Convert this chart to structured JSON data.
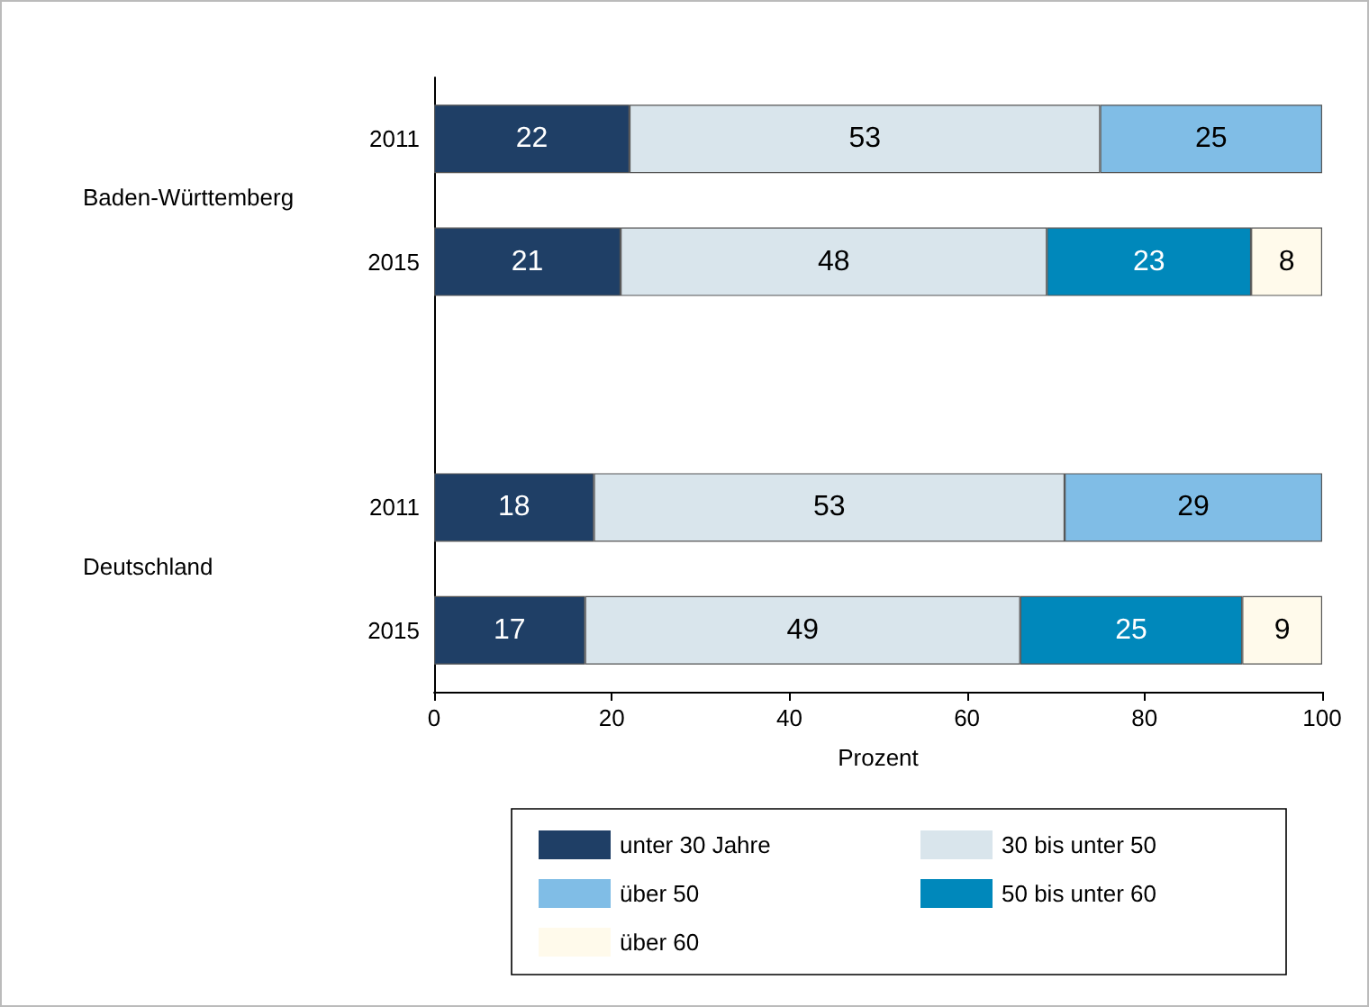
{
  "chart_data": {
    "type": "bar",
    "orientation": "horizontal",
    "stacked": true,
    "data_labels": true,
    "xlabel": "Prozent",
    "xlim": [
      0,
      100
    ],
    "xticks": [
      0,
      20,
      40,
      60,
      80,
      100
    ],
    "grid": false,
    "legend": "bottom",
    "categories": [
      "2011",
      "2015",
      null,
      "2011",
      "2015"
    ],
    "annotations": [
      "Baden-Württemberg",
      "Deutschland"
    ],
    "series": [
      {
        "name": "unter 30 Jahre",
        "color": "#1f3f66",
        "values": [
          22,
          21,
          null,
          18,
          17
        ]
      },
      {
        "name": "30 bis unter 50",
        "color": "#d9e5ec",
        "values": [
          53,
          48,
          null,
          53,
          49
        ]
      },
      {
        "name": "über 50",
        "color": "#80bde6",
        "values": [
          25,
          null,
          null,
          29,
          null
        ]
      },
      {
        "name": "50 bis unter 60",
        "color": "#0088bb",
        "values": [
          null,
          23,
          null,
          null,
          25
        ]
      },
      {
        "name": "über 60",
        "color": "#fffaeb",
        "values": [
          null,
          8,
          null,
          null,
          9
        ]
      }
    ]
  }
}
